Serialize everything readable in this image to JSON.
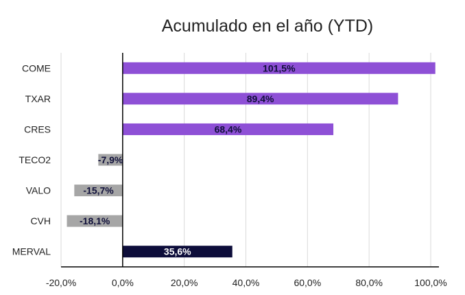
{
  "chart_data": {
    "type": "bar",
    "orientation": "horizontal",
    "title": "Acumulado en el año (YTD)",
    "xlabel": "",
    "ylabel": "",
    "categories": [
      "COME",
      "TXAR",
      "CRES",
      "TECO2",
      "VALO",
      "CVH",
      "MERVAL"
    ],
    "values": [
      101.5,
      89.4,
      68.4,
      -7.9,
      -15.7,
      -18.1,
      35.6
    ],
    "data_labels": [
      "101,5%",
      "89,4%",
      "68,4%",
      "-7,9%",
      "-15,7%",
      "-18,1%",
      "35,6%"
    ],
    "bar_colors": [
      "#8e50d6",
      "#8e50d6",
      "#8e50d6",
      "#a6a6a6",
      "#a6a6a6",
      "#a6a6a6",
      "#0d0d3a"
    ],
    "xlim": [
      -20,
      100
    ],
    "xticks": [
      -20,
      0,
      20,
      40,
      60,
      80,
      100
    ],
    "xtick_labels": [
      "-20,0%",
      "0,0%",
      "20,0%",
      "40,0%",
      "60,0%",
      "80,0%",
      "100,0%"
    ],
    "grid": "vertical",
    "legend": "none"
  }
}
